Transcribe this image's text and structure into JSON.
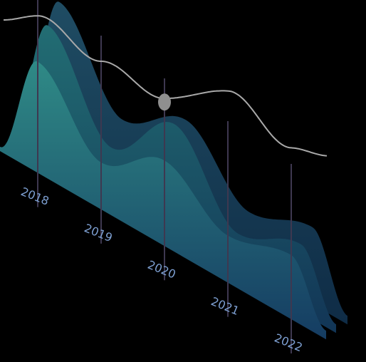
{
  "chart_data": {
    "type": "area",
    "style": "3d-layered-ridges",
    "categories": [
      "2018",
      "2019",
      "2020",
      "2021",
      "2022"
    ],
    "series": [
      {
        "values": [
          0.52,
          0.22,
          0.4,
          0.22,
          0.3
        ]
      },
      {
        "values": [
          0.66,
          0.26,
          0.54,
          0.2,
          0.32
        ]
      },
      {
        "values": [
          0.73,
          0.35,
          0.52,
          0.26,
          0.36
        ]
      }
    ],
    "trend_line": {
      "values": [
        0.82,
        0.6,
        0.42,
        0.46,
        0.2
      ]
    },
    "highlight_category": "2020",
    "grid": true,
    "colors": {
      "background": "#000000",
      "front_top": "#2f8a86",
      "front_bottom": "#153c62",
      "middle_top": "#226d73",
      "middle_bottom": "#123556",
      "back_top": "#1f4c63",
      "back_bottom": "#0f2c46",
      "grid_line": "#3e3850",
      "trend_line": "#a9a9a9",
      "marker": "#8f8f8f",
      "tick_label": "#7d9fd1"
    }
  }
}
